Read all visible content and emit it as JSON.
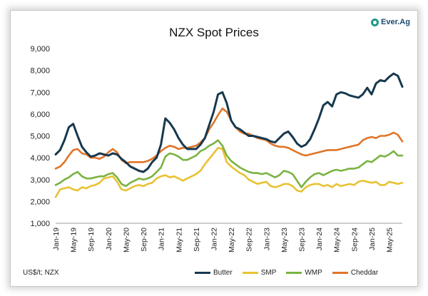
{
  "logo": {
    "text": "Ever.Ag"
  },
  "footnote": "US$/t; NZX",
  "chart_data": {
    "type": "line",
    "title": "NZX Spot Prices",
    "xlabel": "",
    "ylabel": "",
    "ylim": [
      1000,
      9000
    ],
    "yticks": [
      "1,000",
      "2,000",
      "3,000",
      "4,000",
      "5,000",
      "6,000",
      "7,000",
      "8,000",
      "9,000"
    ],
    "x_tick_labels": [
      "Jan-19",
      "May-19",
      "Sep-19",
      "Jan-20",
      "May-20",
      "Sep-20",
      "Jan-21",
      "May-21",
      "Sep-21",
      "Jan-22",
      "May-22",
      "Sep-22",
      "Jan-23",
      "May-23",
      "Sep-23",
      "Jan-24",
      "May-24",
      "Sep-24",
      "Jan-25",
      "May-25"
    ],
    "x_range": [
      "Jan-19",
      "Aug-25"
    ],
    "legend_position": "bottom",
    "grid": false,
    "x": [
      "Jan-19",
      "Feb-19",
      "Mar-19",
      "Apr-19",
      "May-19",
      "Jun-19",
      "Jul-19",
      "Aug-19",
      "Sep-19",
      "Oct-19",
      "Nov-19",
      "Dec-19",
      "Jan-20",
      "Feb-20",
      "Mar-20",
      "Apr-20",
      "May-20",
      "Jun-20",
      "Jul-20",
      "Aug-20",
      "Sep-20",
      "Oct-20",
      "Nov-20",
      "Dec-20",
      "Jan-21",
      "Feb-21",
      "Mar-21",
      "Apr-21",
      "May-21",
      "Jun-21",
      "Jul-21",
      "Aug-21",
      "Sep-21",
      "Oct-21",
      "Nov-21",
      "Dec-21",
      "Jan-22",
      "Feb-22",
      "Mar-22",
      "Apr-22",
      "May-22",
      "Jun-22",
      "Jul-22",
      "Aug-22",
      "Sep-22",
      "Oct-22",
      "Nov-22",
      "Dec-22",
      "Jan-23",
      "Feb-23",
      "Mar-23",
      "Apr-23",
      "May-23",
      "Jun-23",
      "Jul-23",
      "Aug-23",
      "Sep-23",
      "Oct-23",
      "Nov-23",
      "Dec-23",
      "Jan-24",
      "Feb-24",
      "Mar-24",
      "Apr-24",
      "May-24",
      "Jun-24",
      "Jul-24",
      "Aug-24",
      "Sep-24",
      "Oct-24",
      "Nov-24",
      "Dec-24",
      "Jan-25",
      "Feb-25",
      "Mar-25",
      "Apr-25",
      "May-25",
      "Jun-25",
      "Jul-25",
      "Aug-25"
    ],
    "series": [
      {
        "name": "Butter",
        "color": "#17384e",
        "values": [
          4150,
          4350,
          4800,
          5400,
          5550,
          5000,
          4500,
          4250,
          4050,
          4100,
          4200,
          4150,
          4100,
          4200,
          4150,
          3950,
          3800,
          3600,
          3500,
          3400,
          3350,
          3500,
          3800,
          4000,
          4600,
          5800,
          5600,
          5300,
          4900,
          4600,
          4400,
          4400,
          4400,
          4600,
          4900,
          5500,
          6100,
          6900,
          7000,
          6500,
          5700,
          5400,
          5300,
          5150,
          5000,
          5000,
          4950,
          4900,
          4850,
          4750,
          4700,
          4900,
          5100,
          5200,
          4950,
          4650,
          4500,
          4600,
          4850,
          5300,
          5800,
          6400,
          6550,
          6350,
          6900,
          7000,
          6950,
          6850,
          6800,
          6750,
          6900,
          7200,
          6900,
          7400,
          7550,
          7500,
          7700,
          7850,
          7750,
          7250
        ]
      },
      {
        "name": "SMP",
        "color": "#e9c232",
        "values": [
          2200,
          2550,
          2600,
          2650,
          2550,
          2500,
          2650,
          2600,
          2700,
          2750,
          2850,
          3050,
          3100,
          3150,
          2900,
          2550,
          2500,
          2600,
          2700,
          2750,
          2700,
          2800,
          2850,
          3050,
          3150,
          3200,
          3100,
          3150,
          3050,
          2950,
          3050,
          3150,
          3250,
          3400,
          3700,
          3950,
          4200,
          4450,
          4400,
          3800,
          3600,
          3450,
          3300,
          3200,
          3000,
          2900,
          2800,
          2850,
          2900,
          2700,
          2650,
          2700,
          2800,
          2800,
          2700,
          2500,
          2450,
          2650,
          2750,
          2800,
          2800,
          2700,
          2750,
          2650,
          2800,
          2700,
          2750,
          2800,
          2750,
          2900,
          2950,
          2900,
          2850,
          2900,
          2750,
          2750,
          2900,
          2850,
          2800,
          2850
        ]
      },
      {
        "name": "WMP",
        "color": "#7ab342",
        "values": [
          2750,
          2850,
          3000,
          3100,
          3250,
          3350,
          3150,
          3050,
          3050,
          3100,
          3150,
          3150,
          3250,
          3300,
          3100,
          2800,
          2700,
          2850,
          2950,
          3050,
          3000,
          3050,
          3150,
          3350,
          3550,
          4050,
          4200,
          4150,
          4050,
          3900,
          3900,
          4000,
          4100,
          4300,
          4400,
          4550,
          4650,
          4800,
          4550,
          4100,
          3850,
          3700,
          3550,
          3450,
          3350,
          3300,
          3300,
          3250,
          3300,
          3200,
          3100,
          3200,
          3400,
          3350,
          3250,
          2950,
          2650,
          2900,
          3100,
          3250,
          3300,
          3200,
          3300,
          3400,
          3450,
          3400,
          3450,
          3500,
          3500,
          3550,
          3700,
          3850,
          3800,
          3950,
          4100,
          4050,
          4150,
          4300,
          4100,
          4100
        ]
      },
      {
        "name": "Cheddar",
        "color": "#e07528",
        "values": [
          3500,
          3600,
          3800,
          4100,
          4350,
          4400,
          4200,
          4150,
          4000,
          4000,
          3950,
          4050,
          4250,
          4400,
          4250,
          3900,
          3750,
          3800,
          3800,
          3800,
          3800,
          3850,
          3950,
          4100,
          4300,
          4450,
          4550,
          4500,
          4400,
          4450,
          4450,
          4500,
          4550,
          4700,
          4900,
          5300,
          5600,
          5950,
          6250,
          6100,
          5700,
          5400,
          5200,
          5100,
          5100,
          5000,
          4900,
          4850,
          4800,
          4650,
          4550,
          4500,
          4500,
          4450,
          4350,
          4250,
          4150,
          4100,
          4150,
          4200,
          4250,
          4300,
          4350,
          4350,
          4350,
          4400,
          4450,
          4500,
          4550,
          4600,
          4800,
          4900,
          4950,
          4900,
          5000,
          5000,
          5050,
          5150,
          5050,
          4750
        ]
      }
    ]
  }
}
